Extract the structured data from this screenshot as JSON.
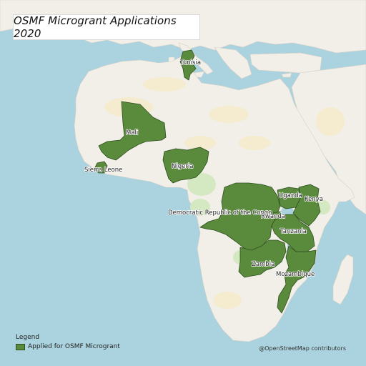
{
  "title": "OSMF Microgrant Applications 2020",
  "colors": {
    "water": "#aad3df",
    "land": "#f2efe9",
    "desert": "#f5ebcf",
    "greenery": "#d4e8c2",
    "highlight": "#5a8a3c",
    "highlight_border": "#2e4f1f"
  },
  "countries": [
    {
      "id": "tunisia",
      "label": "Tunisia"
    },
    {
      "id": "mali",
      "label": "Mali"
    },
    {
      "id": "sierra-leone",
      "label": "Sierra Leone"
    },
    {
      "id": "nigeria",
      "label": "Nigeria"
    },
    {
      "id": "drc",
      "label": "Democratic Republic of the Congo"
    },
    {
      "id": "uganda",
      "label": "Uganda"
    },
    {
      "id": "kenya",
      "label": "Kenya"
    },
    {
      "id": "rwanda",
      "label": "Rwanda"
    },
    {
      "id": "tanzania",
      "label": "Tanzania"
    },
    {
      "id": "zambia",
      "label": "Zambia"
    },
    {
      "id": "mozambique",
      "label": "Mozambique"
    }
  ],
  "legend": {
    "title": "Legend",
    "entry": "Applied for OSMF Microgrant"
  },
  "attribution": "@OpenStreetMap contributors"
}
